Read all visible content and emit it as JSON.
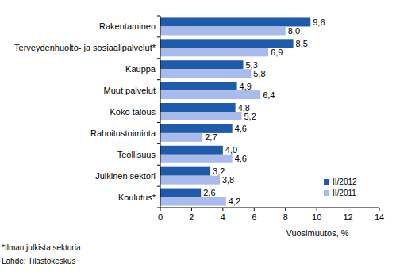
{
  "chart_data": {
    "type": "bar",
    "orientation": "horizontal",
    "categories": [
      "Rakentaminen",
      "Terveydenhuolto- ja sosiaalipalvelut*",
      "Kauppa",
      "Muut palvelut",
      "Koko talous",
      "Rahoitustoiminta",
      "Teollisuus",
      "Julkinen sektori",
      "Koulutus*"
    ],
    "series": [
      {
        "name": "II/2012",
        "color": "#1f5ba8",
        "values": [
          9.6,
          8.5,
          5.3,
          4.9,
          4.8,
          4.6,
          4.0,
          3.2,
          2.6
        ],
        "value_labels": [
          "9,6",
          "8,5",
          "5,3",
          "4,9",
          "4,8",
          "4,6",
          "4,0",
          "3,2",
          "2,6"
        ]
      },
      {
        "name": "II/2011",
        "color": "#a9bbea",
        "values": [
          8.0,
          6.9,
          5.8,
          6.4,
          5.2,
          2.7,
          4.6,
          3.8,
          4.2
        ],
        "value_labels": [
          "8,0",
          "6,9",
          "5,8",
          "6,4",
          "5,2",
          "2,7",
          "4,6",
          "3,8",
          "4,2"
        ]
      }
    ],
    "x_label": "Vuosimuutos, %",
    "xlim": [
      0,
      14
    ],
    "xticks": [
      0,
      2,
      4,
      6,
      8,
      10,
      12,
      14
    ],
    "grid": false,
    "legend": "lower right",
    "data_labels": true,
    "annotations": [
      "*Ilman julkista sektoria",
      "Lähde: Tilastokeskus"
    ]
  }
}
